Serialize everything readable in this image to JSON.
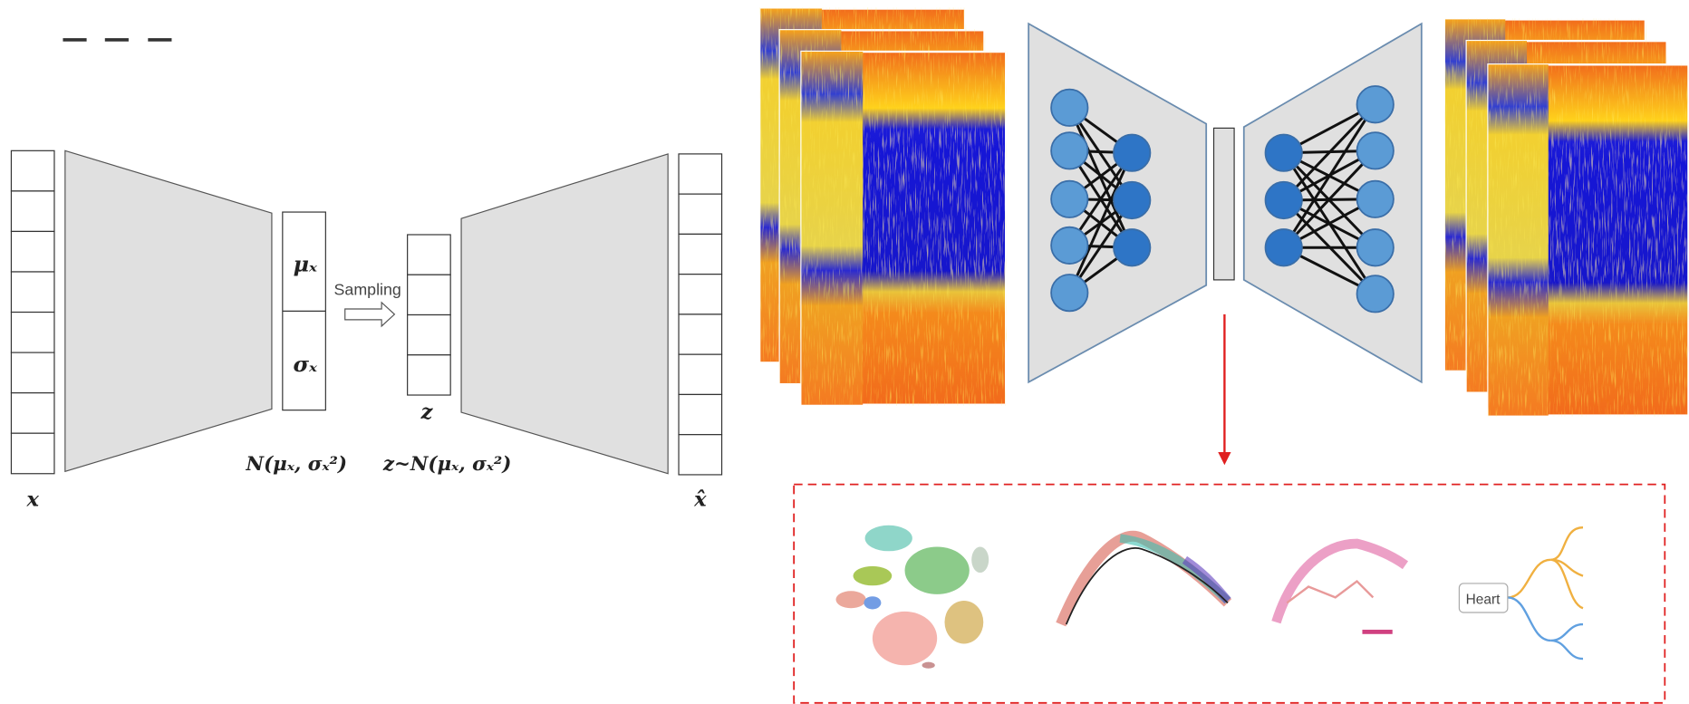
{
  "vae": {
    "mu": "μₓ",
    "sigma": "σₓ",
    "sampling": "Sampling",
    "z": "z",
    "input": "x",
    "output": "x̂",
    "dist": "N(μₓ, σₓ²)",
    "latent_dist": "z~N(μₓ, σₓ²)"
  },
  "tree": {
    "root": "Heart"
  }
}
